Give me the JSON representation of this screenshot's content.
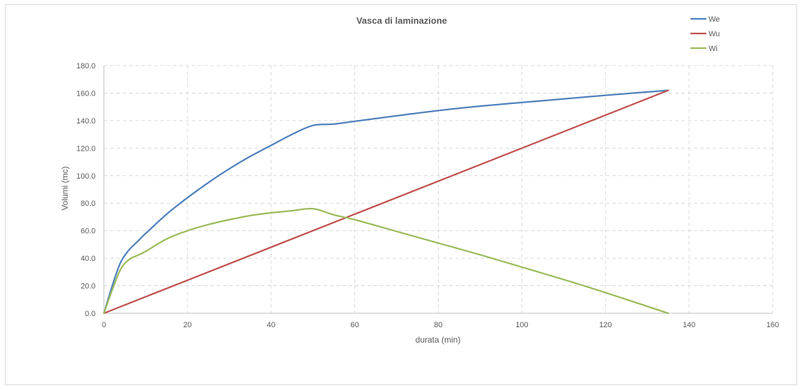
{
  "chart_data": {
    "type": "line",
    "title": "Vasca di laminazione",
    "xlabel": "durata (min)",
    "ylabel": "Volumi (mc)",
    "xlim": [
      0,
      160
    ],
    "ylim": [
      0,
      180
    ],
    "xticks": [
      "0",
      "20",
      "40",
      "60",
      "80",
      "100",
      "120",
      "140",
      "160"
    ],
    "yticks": [
      "0.0",
      "20.0",
      "40.0",
      "60.0",
      "80.0",
      "100.0",
      "120.0",
      "140.0",
      "160.0",
      "180.0"
    ],
    "grid": true,
    "legend_position": "top-right",
    "series": [
      {
        "name": "We",
        "color": "#4f81bd",
        "x": [
          0,
          2,
          4,
          6,
          8,
          10,
          15,
          20,
          25,
          30,
          35,
          40,
          45,
          50,
          55,
          60,
          70,
          80,
          90,
          100,
          110,
          120,
          135
        ],
        "y": [
          0,
          20,
          37,
          46,
          52,
          58,
          72,
          84,
          95,
          105,
          114,
          122,
          130,
          136.5,
          137.5,
          139.5,
          143.5,
          147.3,
          150.5,
          153.2,
          155.8,
          158.4,
          162
        ]
      },
      {
        "name": "Wu",
        "color": "#c0504d",
        "x": [
          0,
          135
        ],
        "y": [
          0,
          162
        ]
      },
      {
        "name": "Wi",
        "color": "#9bbb59",
        "x": [
          0,
          2,
          4,
          6,
          8,
          10,
          15,
          20,
          25,
          30,
          35,
          40,
          45,
          50,
          55,
          60,
          70,
          80,
          90,
          100,
          110,
          120,
          135
        ],
        "y": [
          0,
          17,
          32,
          39,
          42,
          45,
          54,
          60,
          64.5,
          68,
          71,
          73,
          74.5,
          76,
          71.5,
          68,
          59.5,
          51,
          42.5,
          33.5,
          24.5,
          15,
          0
        ]
      }
    ]
  }
}
